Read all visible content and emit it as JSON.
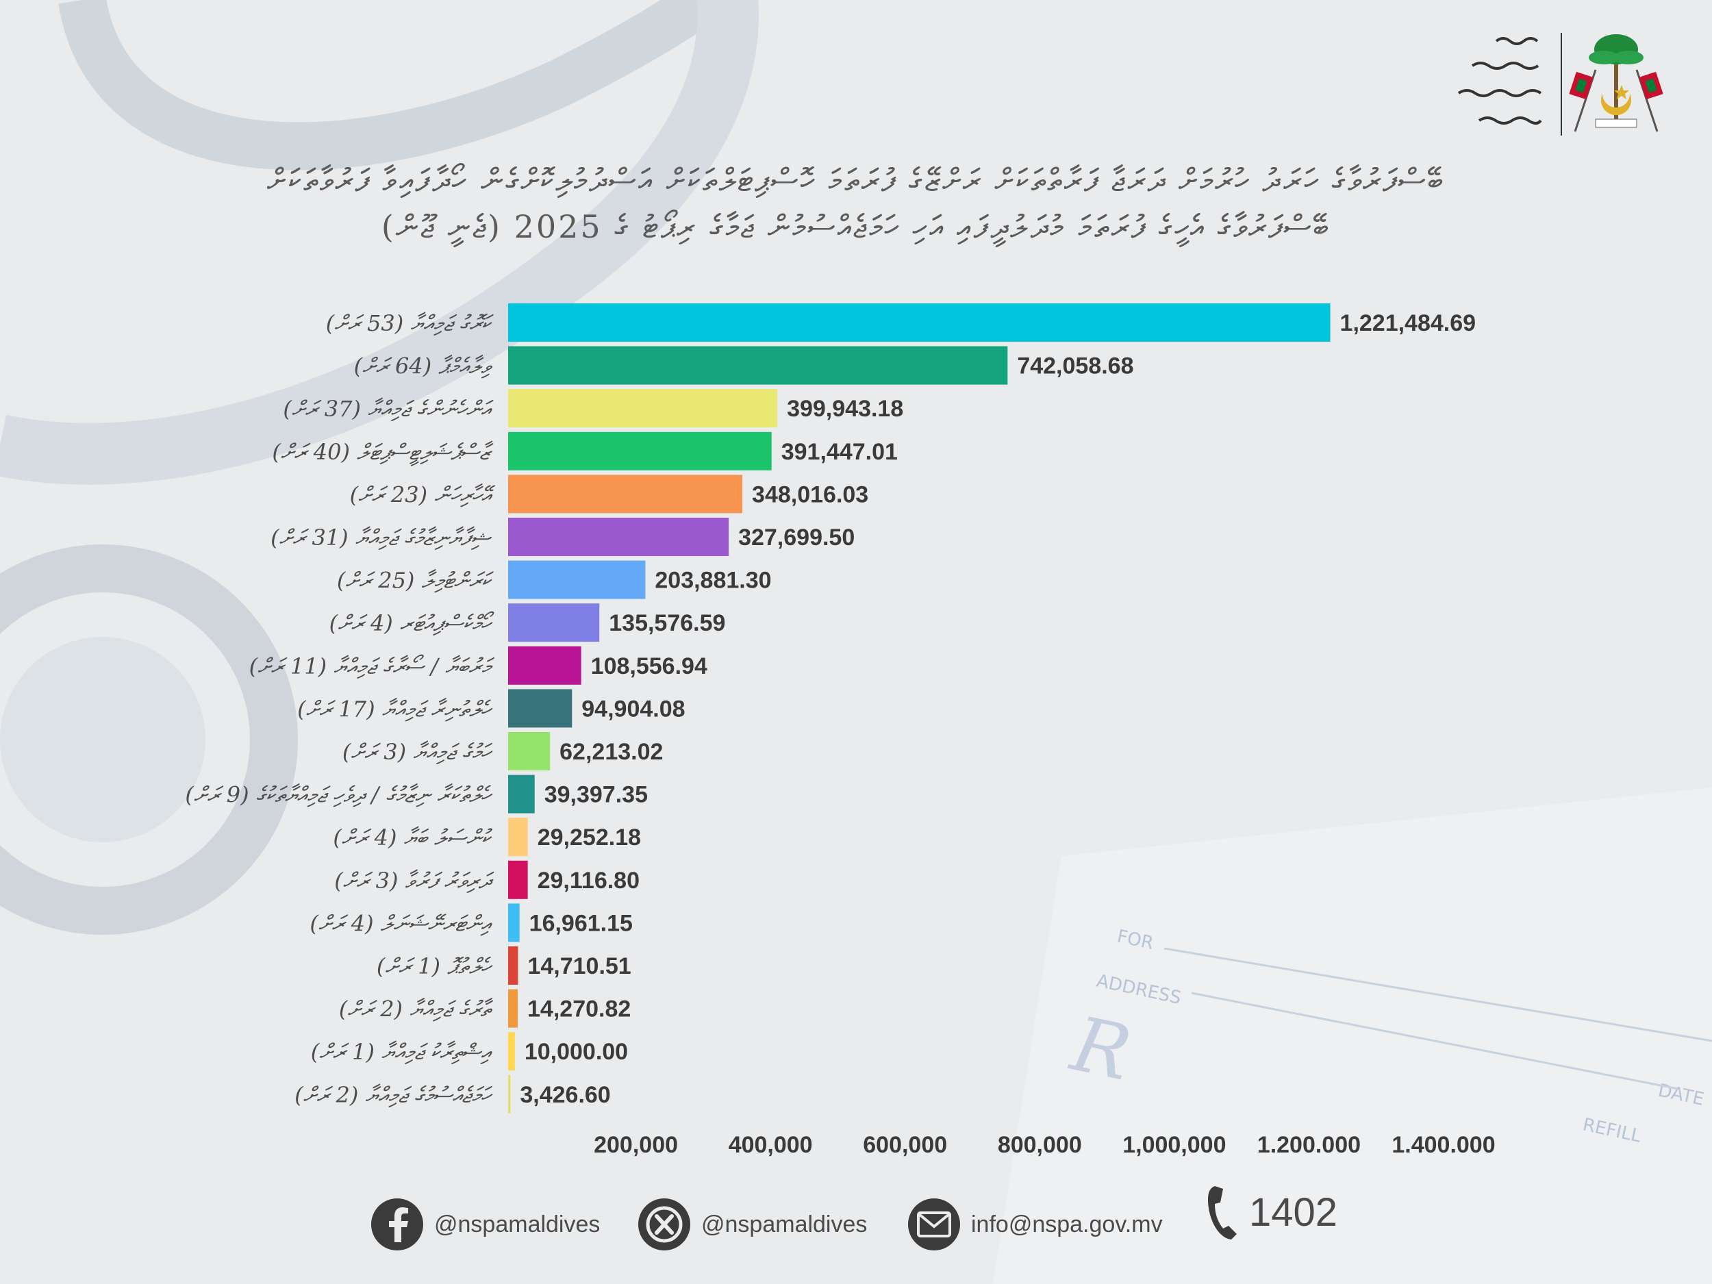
{
  "header": {
    "title_line1": "ބޭސްފަރުވާގެ ހަރަދު ހުރުމަށް ދަރަޖާ ފަރާތްތަކަށް ރަށްޒޭގެ ފުރަތަމަ ހޮސްޕިޓަލްތަކަށް އަސްދުމުލިކޮށްގެން ހޯދާފައިވާ ފަރުވާތަކަށް",
    "title_line2": "ބޭސްފަރުވާގެ އެހީގެ ފުރަތަމަ މުދަލުދީފައި އަހި ހަމަޖެއްސުމުން ޖަމާގެ ރިޕޯޓު ގެ 2025 (ޖެނީ ޖޫން)"
  },
  "colors": {
    "value_text": "#3a3a3a",
    "label_text": "#4d4d4d",
    "axis_text": "#3a3a3a"
  },
  "chart_data": {
    "type": "bar",
    "orientation": "horizontal",
    "categories": [
      "ކަރޮގު ޖަމިއްޔާ (53 ރަށް)",
      "ވިލާއެމްޕާ (64 ރަށް)",
      "އަންހެނުންގެ ޖަމިއްޔާ (37 ރަށް)",
      "ޒާސްޕެޝަލިޓީސްޕިޓަލް (40 ރަށް)",
      "އޭހާރިހަން (23 ރަށް)",
      "ޝިފާޔާނިޒާމުގެ ޖަމިއްޔާ (31 ރަށް)",
      "ކަރަންޓުމިލާ (25 ރަށް)",
      "ހޯމްކެސްޕިއުޓަރ (4 ރަށް)",
      "މަރުބަޔާ / ސޯރާގެ ޖަމިއްޔާ (11 ރަށް)",
      "ހެލްތުނިރާ ޖަމިއްޔާ (17 ރަށް)",
      "ހަމުގެ ޖަމިއްޔާ (3 ރަށް)",
      "ހެލްތުކަރާ ނިޒާމުގެ / ދިވެހި ޖަމިއްޔާތަކުގެ (9 ރަށް)",
      "ކުންސަލު ބަޔާ (4 ރަށް)",
      "ދަރިވަރު ފަރުވާ (3 ރަށް)",
      "އިންޓަރނޭޝަނަލް (4 ރަށް)",
      "ހެލްތުޕޮ (1 ރަށް)",
      "ތާރުގެ ޖަމިއްޔާ (2 ރަށް)",
      "އިޝްތިރާކު ޖަމިއްޔާ (1 ރަށް)",
      "ހަމަޖެއްސުމުގެ ޖަމިއްޔާ (2 ރަށް)"
    ],
    "values": [
      1221484.69,
      742058.68,
      399943.18,
      391447.01,
      348016.03,
      327699.5,
      203881.3,
      135576.59,
      108556.94,
      94904.08,
      62213.02,
      39397.35,
      29252.18,
      29116.8,
      16961.15,
      14710.51,
      14270.82,
      10000.0,
      3426.6
    ],
    "value_labels": [
      "1,221,484.69",
      "742,058.68",
      "399,943.18",
      "391,447.01",
      "348,016.03",
      "327,699.50",
      "203,881.30",
      "135,576.59",
      "108,556.94",
      "94,904.08",
      "62,213.02",
      "39,397.35",
      "29,252.18",
      "29,116.80",
      "16,961.15",
      "14,710.51",
      "14,270.82",
      "10,000.00",
      "3,426.60"
    ],
    "bar_colors": [
      "#00c5dc",
      "#14a47d",
      "#e8e872",
      "#1bc46b",
      "#f79550",
      "#9b59d0",
      "#64a9f7",
      "#7f7fe6",
      "#b71496",
      "#36737a",
      "#96e36b",
      "#21918c",
      "#ffcc7a",
      "#d30f5f",
      "#3fbef5",
      "#db4436",
      "#f09a3e",
      "#ffd84d",
      "#e0e070"
    ],
    "x_ticks": [
      "200,000",
      "400,000",
      "600,000",
      "800,000",
      "1,000,000",
      "1.200.000",
      "1.400.000"
    ],
    "x_tick_values": [
      200000,
      400000,
      600000,
      800000,
      1000000,
      1200000,
      1400000
    ],
    "xlim": [
      0,
      1400000
    ],
    "grid": false,
    "legend": "none"
  },
  "footer": {
    "facebook": "@nspamaldives",
    "x": "@nspamaldives",
    "email": "info@nspa.gov.mv",
    "phone": "1402",
    "facebook_icon": "facebook-icon",
    "x_icon": "x-icon",
    "email_icon": "mail-icon",
    "phone_icon": "phone-icon"
  }
}
